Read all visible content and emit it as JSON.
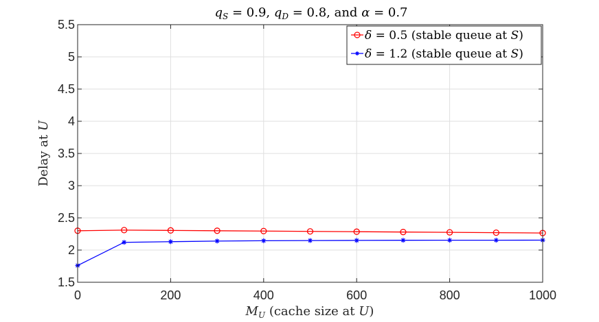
{
  "chart_data": {
    "type": "line",
    "title": "q_S = 0.9, q_D = 0.8, and α = 0.7",
    "title_parts": {
      "q1_var": "q",
      "q1_sub": "S",
      "q1_val": " = 0.9, ",
      "q2_var": "q",
      "q2_sub": "D",
      "q2_val": " = 0.8, and ",
      "alpha_var": "α",
      "alpha_val": " = 0.7"
    },
    "xlabel": "M_U (cache size at U)",
    "xlabel_parts": {
      "var": "M",
      "sub": "U",
      "rest": " (cache size at ",
      "end_var": "U",
      "end": ")"
    },
    "ylabel": "Delay at U",
    "ylabel_parts": {
      "text": "Delay at ",
      "var": "U"
    },
    "xlim": [
      0,
      1000
    ],
    "ylim": [
      1.5,
      5.5
    ],
    "xticks": [
      0,
      200,
      400,
      600,
      800,
      1000
    ],
    "xtick_labels": [
      "0",
      "200",
      "400",
      "600",
      "800",
      "1000"
    ],
    "yticks": [
      1.5,
      2,
      2.5,
      3,
      3.5,
      4,
      4.5,
      5,
      5.5
    ],
    "ytick_labels": [
      "1.5",
      "2",
      "2.5",
      "3",
      "3.5",
      "4",
      "4.5",
      "5",
      "5.5"
    ],
    "grid": true,
    "legend_position": "top-right",
    "x": [
      0,
      100,
      200,
      300,
      400,
      500,
      600,
      700,
      800,
      900,
      1000
    ],
    "series": [
      {
        "name": "δ = 0.5 (stable queue at S)",
        "label_parts": {
          "var": "δ",
          "val": " = 0.5 (stable queue at ",
          "end_var": "S",
          "end": ")"
        },
        "color": "#ff0000",
        "marker": "circle",
        "values": [
          2.3,
          2.31,
          2.305,
          2.3,
          2.295,
          2.29,
          2.285,
          2.28,
          2.275,
          2.27,
          2.265
        ]
      },
      {
        "name": "δ = 1.2 (stable queue at S)",
        "label_parts": {
          "var": "δ",
          "val": " = 1.2 (stable queue at ",
          "end_var": "S",
          "end": ")"
        },
        "color": "#0000ff",
        "marker": "asterisk",
        "values": [
          1.76,
          2.12,
          2.13,
          2.14,
          2.145,
          2.148,
          2.15,
          2.152,
          2.153,
          2.153,
          2.154
        ]
      }
    ]
  }
}
